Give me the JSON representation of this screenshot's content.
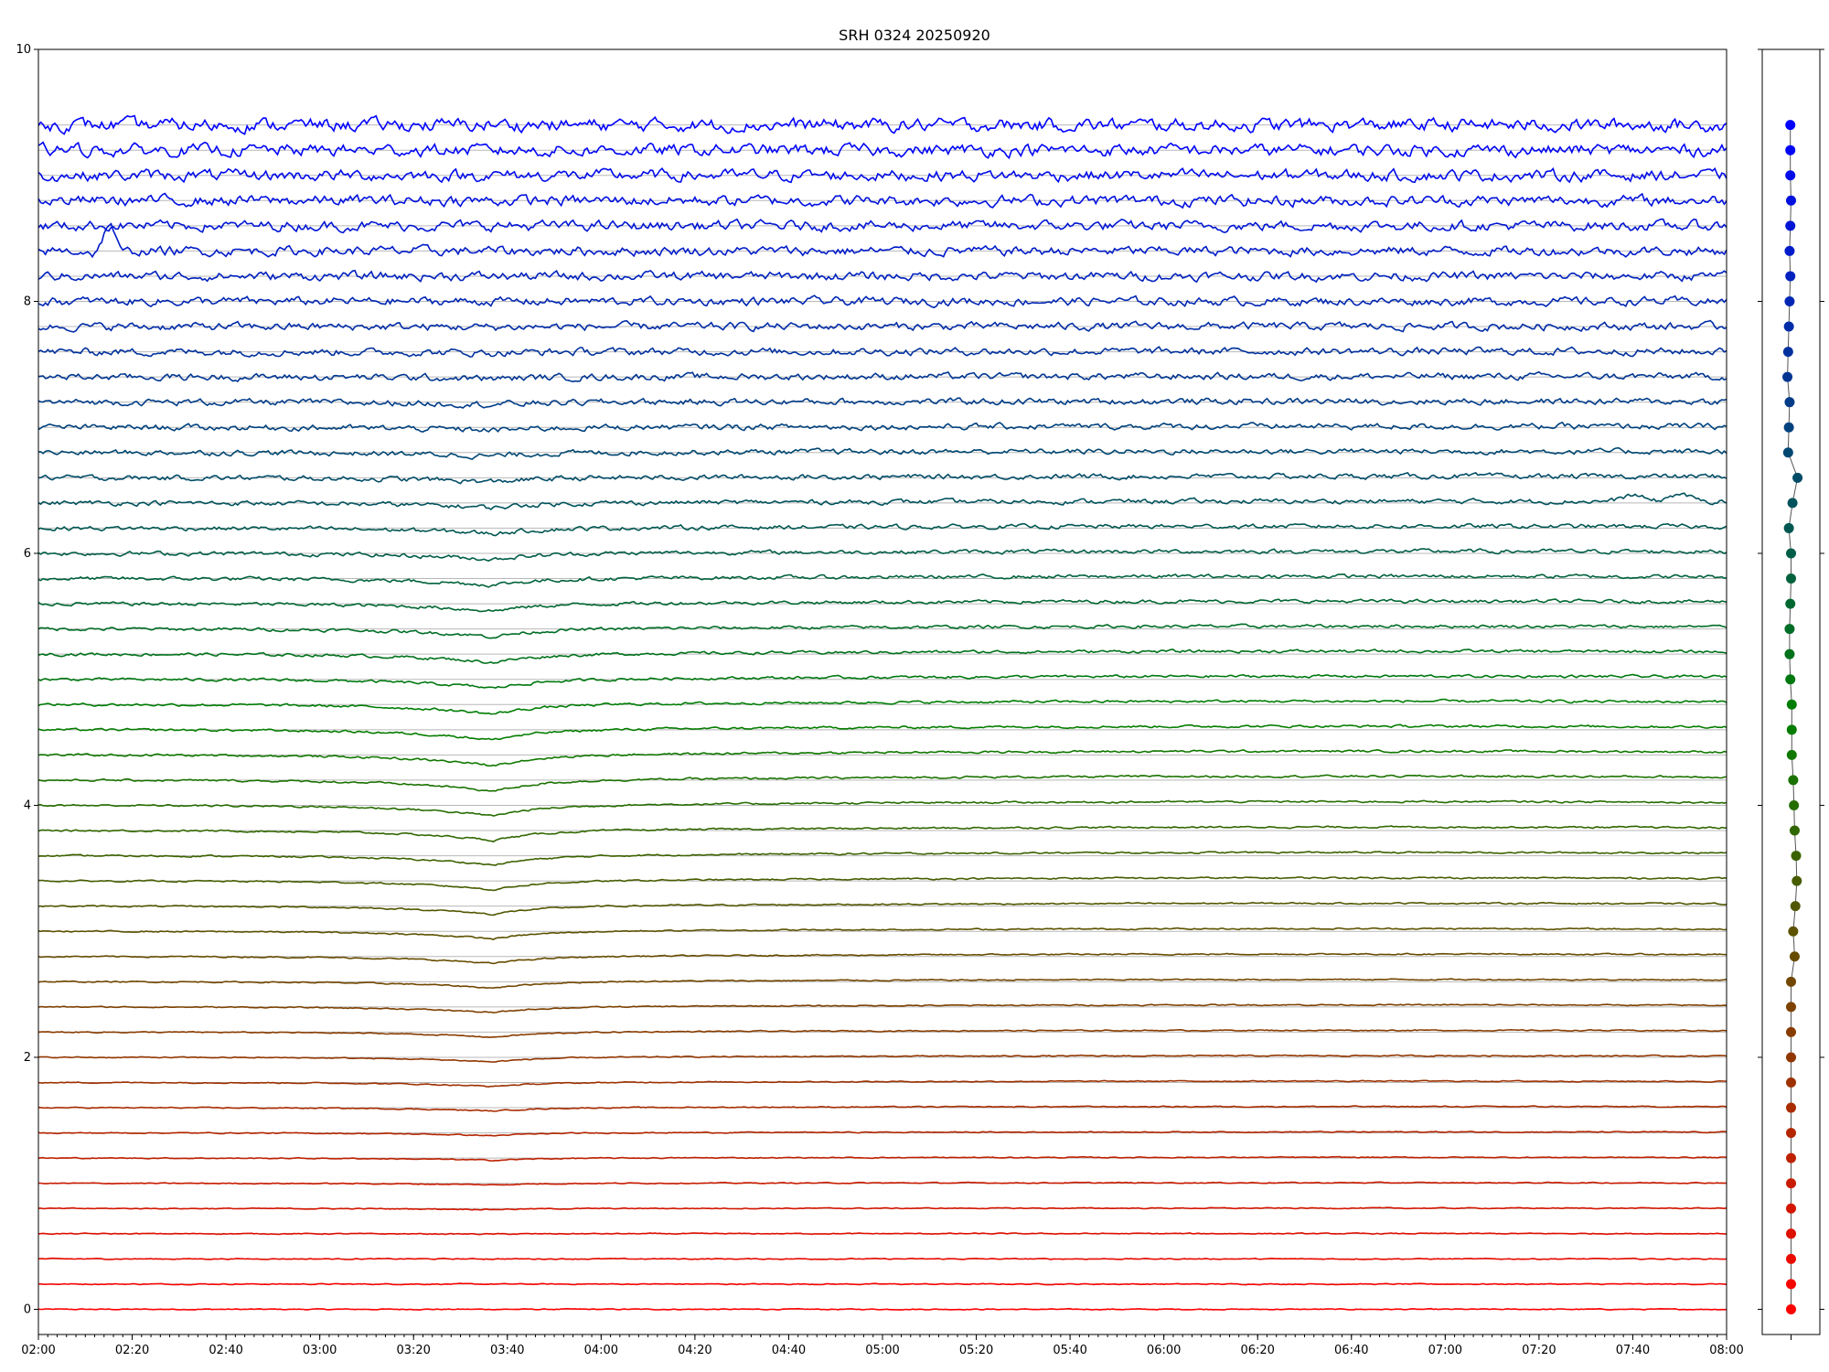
{
  "chart_data": [
    {
      "type": "line",
      "title": "SRH 0324 20250920",
      "xlabel": "",
      "ylabel": "",
      "x_ticks": [
        "02:00",
        "02:20",
        "02:40",
        "03:00",
        "03:20",
        "03:40",
        "04:00",
        "04:20",
        "04:40",
        "05:00",
        "05:20",
        "05:40",
        "06:00",
        "06:20",
        "06:40",
        "07:00",
        "07:20",
        "07:40",
        "08:00"
      ],
      "x_range": [
        "02:00",
        "08:00"
      ],
      "y_ticks": [
        0,
        2,
        4,
        6,
        8,
        10
      ],
      "ylim": [
        -0.2,
        10
      ],
      "grid": "horizontal lines at each trace baseline",
      "legend": "none",
      "series_count": 48,
      "series_spacing": 0.2,
      "baselines_start": 0.0,
      "color_start": "#ff0000",
      "color_middle": "#008000",
      "color_end": "#0000ff",
      "noise_amplitude_low": 0.004,
      "noise_amplitude_high": 0.05,
      "dip_time": "03:37",
      "dip_depth_max": 0.09,
      "burst_time": "02:15",
      "burst_series_index": 42,
      "late_peaks_series_index": 32
    },
    {
      "type": "scatter",
      "title": "",
      "x_values": [
        0,
        0,
        0,
        0,
        0,
        0,
        0,
        0,
        0,
        0,
        0,
        0,
        0,
        0,
        0.05,
        0.03,
        0.06,
        0.08,
        0.07,
        0.05,
        0.04,
        0.03,
        0.01,
        0.01,
        0.01,
        -0.01,
        -0.02,
        -0.02,
        -0.01,
        0,
        0,
        -0.03,
        0.02,
        0.09,
        -0.04,
        -0.03,
        -0.02,
        -0.05,
        -0.04,
        -0.03,
        -0.02,
        -0.01,
        -0.02,
        -0.01,
        0,
        -0.01,
        -0.01,
        -0.01
      ],
      "y_values": [
        0,
        0.2,
        0.4,
        0.6,
        0.8,
        1.0,
        1.2,
        1.4,
        1.6,
        1.8,
        2.0,
        2.2,
        2.4,
        2.6,
        2.8,
        3.0,
        3.2,
        3.4,
        3.6,
        3.8,
        4.0,
        4.2,
        4.4,
        4.6,
        4.8,
        5.0,
        5.2,
        5.4,
        5.6,
        5.8,
        6.0,
        6.2,
        6.4,
        6.6,
        6.8,
        7.0,
        7.2,
        7.4,
        7.6,
        7.8,
        8.0,
        8.2,
        8.4,
        8.6,
        8.8,
        9.0,
        9.2,
        9.4
      ],
      "xlim": [
        -0.4,
        0.4
      ],
      "ylim": [
        -0.2,
        10
      ],
      "connected": true,
      "grid": "off",
      "legend": "none"
    }
  ]
}
